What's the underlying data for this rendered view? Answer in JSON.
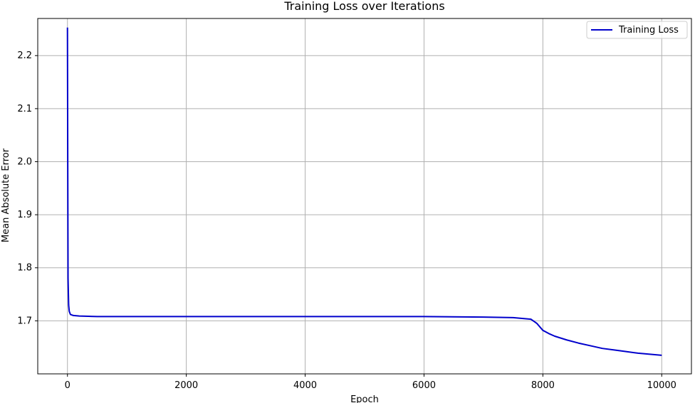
{
  "chart_data": {
    "type": "line",
    "title": "Training Loss over Iterations",
    "xlabel": "Epoch",
    "ylabel": "Mean Absolute Error",
    "xlim": [
      -500,
      10500
    ],
    "ylim": [
      1.6,
      2.27
    ],
    "xticks": [
      0,
      2000,
      4000,
      6000,
      8000,
      10000
    ],
    "yticks": [
      1.7,
      1.8,
      1.9,
      2.0,
      2.1,
      2.2
    ],
    "grid": true,
    "legend_position": "top-right",
    "series": [
      {
        "name": "Training Loss",
        "color": "#0000cc",
        "x": [
          0,
          5,
          10,
          20,
          30,
          50,
          100,
          200,
          500,
          1000,
          2000,
          3000,
          4000,
          5000,
          6000,
          7000,
          7500,
          7800,
          7900,
          8000,
          8100,
          8200,
          8400,
          8600,
          8800,
          9000,
          9200,
          9400,
          9600,
          9800,
          10000
        ],
        "y": [
          2.253,
          2.0,
          1.78,
          1.73,
          1.718,
          1.712,
          1.71,
          1.709,
          1.708,
          1.708,
          1.708,
          1.708,
          1.708,
          1.708,
          1.708,
          1.707,
          1.706,
          1.703,
          1.695,
          1.682,
          1.676,
          1.671,
          1.664,
          1.658,
          1.653,
          1.648,
          1.645,
          1.642,
          1.639,
          1.637,
          1.635
        ]
      }
    ]
  }
}
